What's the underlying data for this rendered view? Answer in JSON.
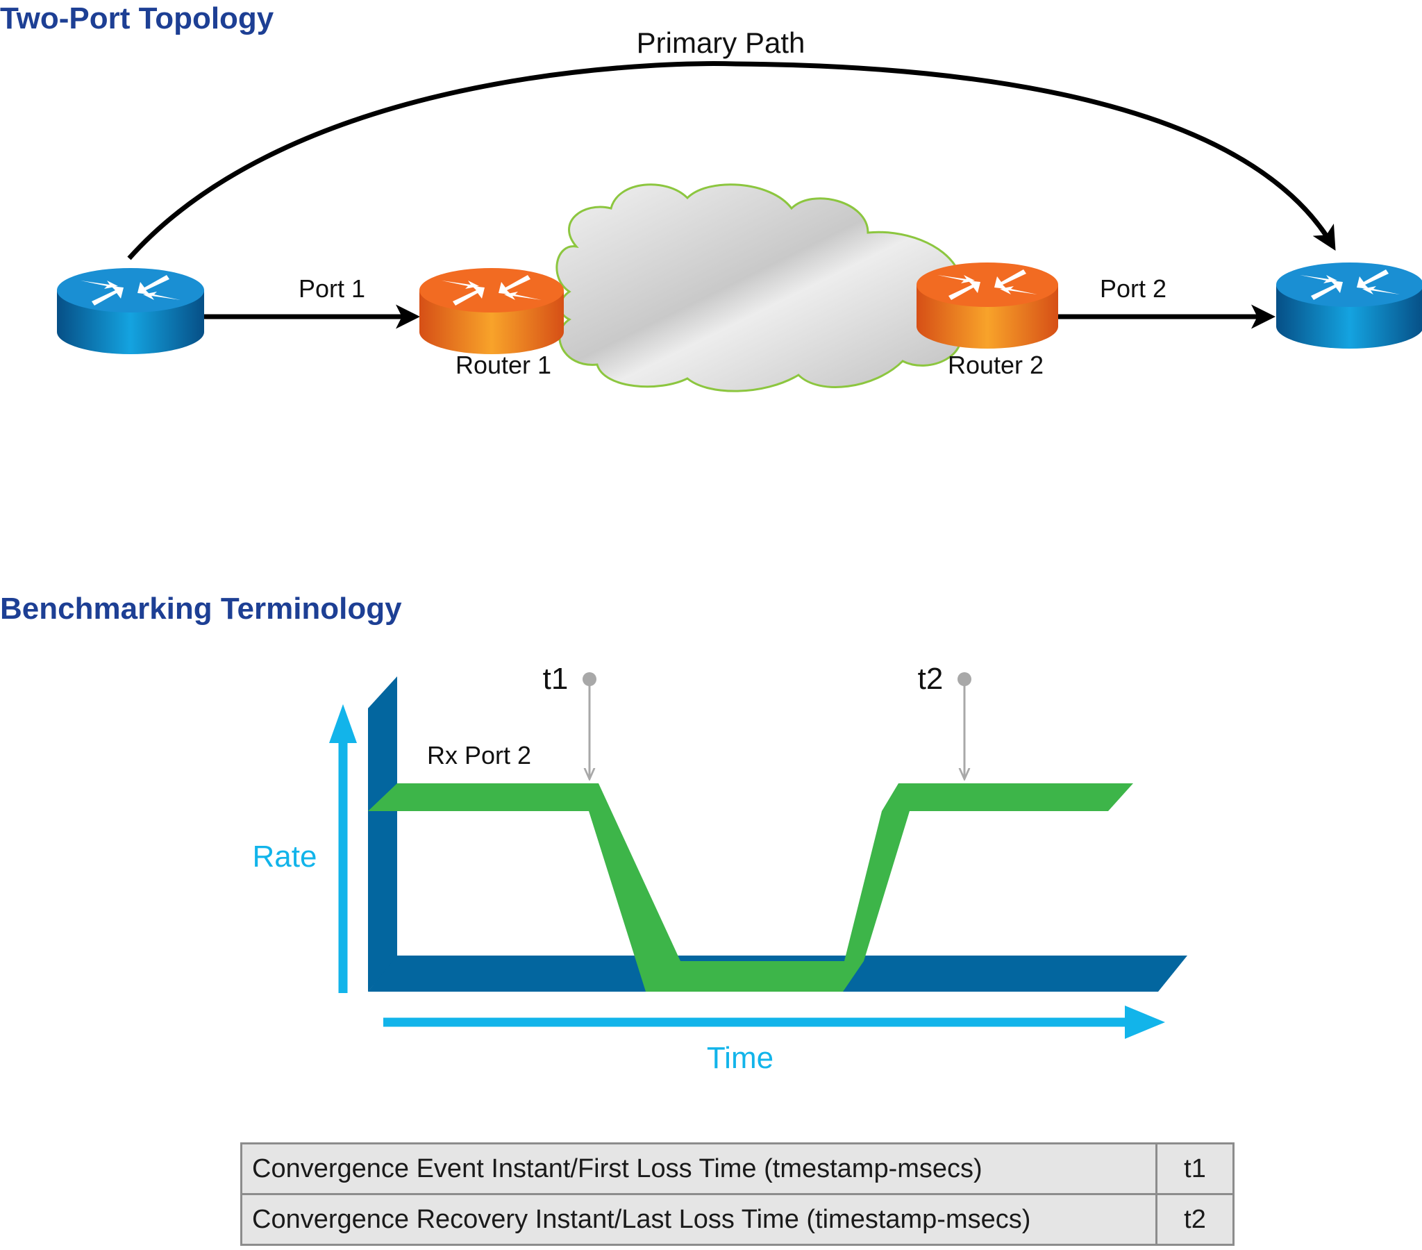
{
  "topology": {
    "title": "Two-Port Topology",
    "primary_path_label": "Primary Path",
    "port1_label": "Port 1",
    "port2_label": "Port 2",
    "router1_label": "Router 1",
    "router2_label": "Router 2"
  },
  "benchmark": {
    "title": "Benchmarking Terminology",
    "series_label": "Rx Port 2",
    "y_axis_label": "Rate",
    "x_axis_label": "Time",
    "marker1_label": "t1",
    "marker2_label": "t2"
  },
  "table": {
    "rows": [
      {
        "description": "Convergence Event Instant/First Loss Time (tmestamp-msecs)",
        "value": "t1"
      },
      {
        "description": "Convergence Recovery Instant/Last Loss Time (timestamp-msecs)",
        "value": "t2"
      }
    ]
  },
  "colors": {
    "title_blue": "#1d3f94",
    "axis_cyan": "#12b4ea",
    "floor_blue": "#03669f",
    "trace_green": "#3db549",
    "router_orange": "#f3831f",
    "router_blue": "#0a79c2",
    "marker_gray": "#a8a8a8"
  },
  "icons": [
    "router-icon",
    "cloud-icon",
    "arrow-icon"
  ]
}
